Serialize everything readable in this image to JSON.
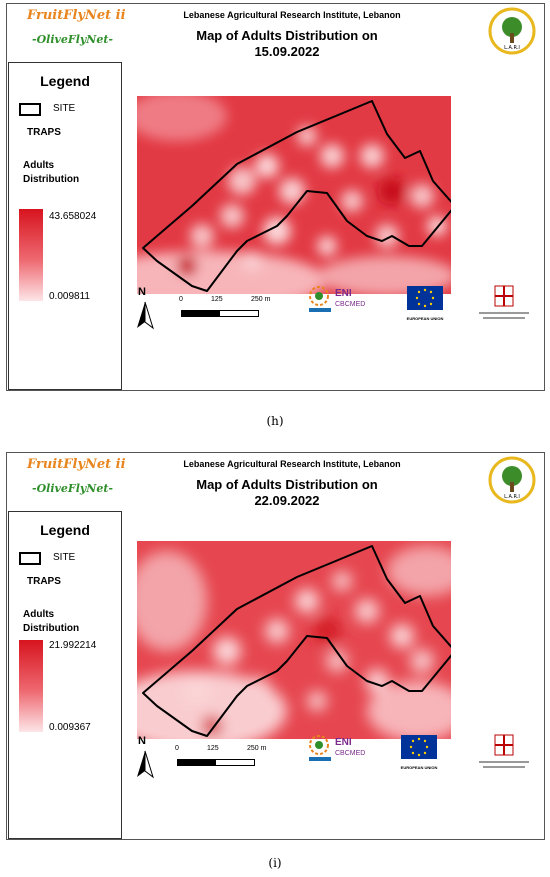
{
  "colors": {
    "site_outline": "#000000",
    "heat_high": "#d7141e",
    "heat_low": "#fde6e8",
    "brand_orange": "#e8851e",
    "brand_green": "#2f8f2a"
  },
  "panels": [
    {
      "brand": "FruitFlyNet ii",
      "brand_sub": "-OliveFlyNet-",
      "institute": "Lebanese Agricultural Research Institute, Lebanon",
      "title_line1": "Map of Adults Distribution on",
      "title_line2": "15.09.2022",
      "legend": {
        "title": "Legend",
        "site": "SITE",
        "traps": "TRAPS",
        "adults": "Adults",
        "distribution": "Distribution",
        "max": "43.658024",
        "min": "0.009811"
      },
      "north": "N",
      "scale": {
        "zero": "0",
        "mid": "125",
        "end": "250 m"
      },
      "caption": "(h)"
    },
    {
      "brand": "FruitFlyNet ii",
      "brand_sub": "-OliveFlyNet-",
      "institute": "Lebanese Agricultural Research Institute, Lebanon",
      "title_line1": "Map of Adults Distribution on",
      "title_line2": "22.09.2022",
      "legend": {
        "title": "Legend",
        "site": "SITE",
        "traps": "TRAPS",
        "adults": "Adults",
        "distribution": "Distribution",
        "max": "21.992214",
        "min": "0.009367"
      },
      "north": "N",
      "scale": {
        "zero": "0",
        "mid": "125",
        "end": "250 m"
      },
      "caption": "(i)"
    }
  ],
  "logos": {
    "eni_label": "ENI",
    "eni_sub": "CBCMED",
    "eu_label": "EUROPEAN UNION",
    "lari_label": "L.A.R.I"
  }
}
